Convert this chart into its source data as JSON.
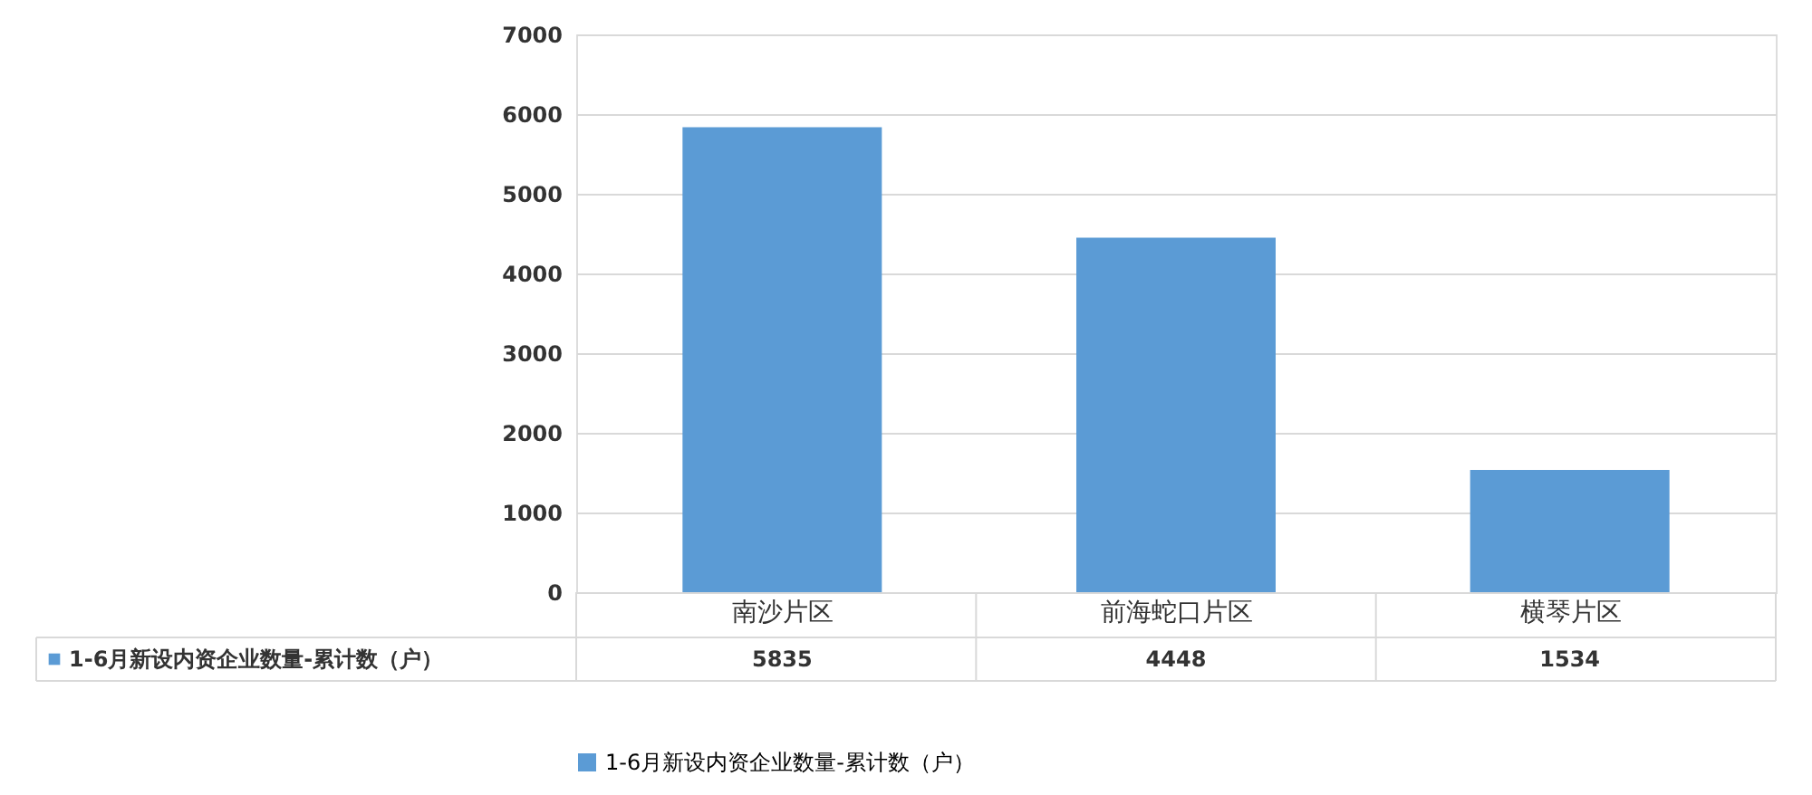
{
  "chart_data": {
    "type": "bar",
    "categories": [
      "南沙片区",
      "前海蛇口片区",
      "横琴片区"
    ],
    "series": [
      {
        "name": "1-6月新设内资企业数量-累计数（户）",
        "color": "#5b9bd5",
        "values": [
          5835,
          4448,
          1534
        ]
      }
    ],
    "ylim": [
      0,
      7000
    ],
    "yticks": [
      0,
      1000,
      2000,
      3000,
      4000,
      5000,
      6000,
      7000
    ],
    "grid": "y",
    "data_labels": true,
    "legend": "bottom"
  }
}
